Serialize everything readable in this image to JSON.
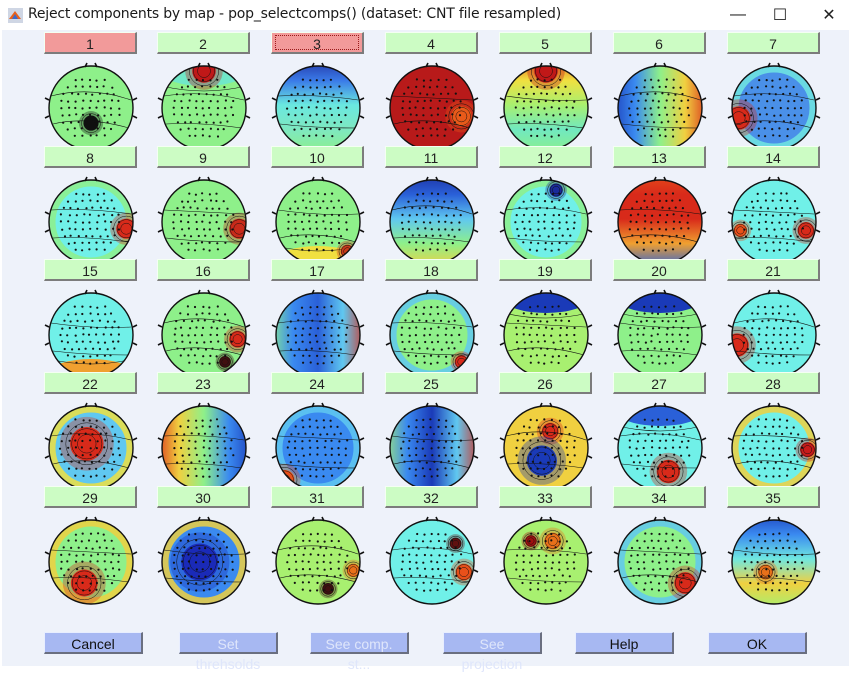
{
  "window": {
    "title": "Reject components by map - pop_selectcomps() (dataset: CNT file resampled)",
    "app_icon": "matlab-icon",
    "controls": {
      "minimize": "—",
      "maximize": "☐",
      "close": "✕"
    }
  },
  "colors": {
    "background": "#eef2fa",
    "accept_button": "#ccfcc4",
    "reject_button": "#f29a9a",
    "action_button": "#a7b8f2",
    "disabled_text": "#dfe6fb"
  },
  "components": [
    {
      "label": "1",
      "status": "reject",
      "map": "bg:#8ef08a;spot:0.5,0.68,0.09,#101010"
    },
    {
      "label": "2",
      "status": "accept",
      "map": "bg:#8ef08a;topband:#70e8c8;spot:0.5,0.06,0.14,#c01818"
    },
    {
      "label": "3",
      "status": "reject",
      "focused": true,
      "map": "grad:#1e2a9a,#3a7ae8,#6ae8e0,#7ee8c0,#8ef08a"
    },
    {
      "label": "4",
      "status": "accept",
      "map": "bg:#b81a1a;spot:0.85,0.6,0.12,#e85a1a"
    },
    {
      "label": "5",
      "status": "accept",
      "map": "grad:#e8501a,#f0e040,#a8f070,#70e8c0,#8ef08a;spot:0.5,0.06,0.14,#c01818"
    },
    {
      "label": "6",
      "status": "accept",
      "map": "lr:#1a3ab8,#3a8af0,#8ef08a,#f0d040,#d82a1a"
    },
    {
      "label": "7",
      "status": "accept",
      "map": "bg:#4a90e8;spot:0.08,0.62,0.14,#d82a1a;edge:#70e8e0"
    },
    {
      "label": "8",
      "status": "accept",
      "map": "bg:#70f0e8;spot:0.92,0.58,0.12,#d82a1a;edge:#8ef08a"
    },
    {
      "label": "9",
      "status": "accept",
      "map": "bg:#8ef08a;spot:0.92,0.58,0.12,#c82a1a"
    },
    {
      "label": "10",
      "status": "accept",
      "map": "bg:#8ef08a;botband:#f0e040;spot:0.85,0.85,0.08,#c83a1a"
    },
    {
      "label": "11",
      "status": "accept",
      "map": "grad:#1a2a9a,#2a60d8,#60c8f0,#8ef08a,#f0d040"
    },
    {
      "label": "12",
      "status": "accept",
      "map": "bg:#70f0e8;spot:0.62,0.12,0.08,#1a2a9a;edge:#8ef08a"
    },
    {
      "label": "13",
      "status": "accept",
      "map": "grad:#e8501a,#d82a1a,#d82a1a,#f0a030,#2a60d8"
    },
    {
      "label": "14",
      "status": "accept",
      "map": "bg:#70f0e8;spot:0.88,0.6,0.1,#d82a1a;spot2:0.1,0.6,0.08,#e8501a"
    },
    {
      "label": "15",
      "status": "accept",
      "map": "bg:#70f0e8;botband:#f0a030"
    },
    {
      "label": "16",
      "status": "accept",
      "map": "bg:#8ef08a;spot:0.9,0.55,0.1,#d82a1a;spot2:0.75,0.82,0.07,#401010"
    },
    {
      "label": "17",
      "status": "accept",
      "map": "lr:#8ef08a,#3a8af0,#2a60d8,#60c8f0,#d82a1a"
    },
    {
      "label": "18",
      "status": "accept",
      "map": "bg:#8ef08a;spot:0.85,0.82,0.08,#d82a1a;edge:#60c8f0"
    },
    {
      "label": "19",
      "status": "accept",
      "map": "bg:#a8f070;topband:#1a3ab8"
    },
    {
      "label": "20",
      "status": "accept",
      "map": "bg:#8ef08a;topband:#1a3ab8"
    },
    {
      "label": "21",
      "status": "accept",
      "map": "bg:#70f0e8;spot:0.06,0.62,0.14,#d82a1a"
    },
    {
      "label": "22",
      "status": "accept",
      "map": "bg:#60c8f0;spot:0.45,0.45,0.2,#d82a1a;edge:#f0e040"
    },
    {
      "label": "23",
      "status": "accept",
      "map": "lr:#d82a1a,#f0d040,#8ef08a,#3a8af0,#1a3ab8"
    },
    {
      "label": "24",
      "status": "accept",
      "map": "bg:#3a8af0;spot:0.1,0.88,0.12,#e8501a;edge:#60c8f0"
    },
    {
      "label": "25",
      "status": "accept",
      "map": "lr:#a8f070,#3a8af0,#1a3ab8,#60c8f0,#d82a1a"
    },
    {
      "label": "26",
      "status": "accept",
      "map": "bg:#f0d040;spot:0.55,0.3,0.1,#d82a1a;spot2:0.45,0.65,0.18,#1a3ab8"
    },
    {
      "label": "27",
      "status": "accept",
      "map": "bg:#70f0e8;spot:0.6,0.78,0.14,#d82a1a;topband:#2a60d8"
    },
    {
      "label": "28",
      "status": "accept",
      "map": "bg:#70f0e8;spot:0.9,0.52,0.09,#c81a1a;edge:#f0d040"
    },
    {
      "label": "29",
      "status": "accept",
      "map": "bg:#8ef08a;spot:0.42,0.75,0.16,#d82a1a;edge:#f0d040"
    },
    {
      "label": "30",
      "status": "accept",
      "map": "bg:#3a8af0;spot:0.45,0.5,0.22,#1a2ab8;edge:#f0d040"
    },
    {
      "label": "31",
      "status": "accept",
      "map": "bg:#a8f070;spot:0.62,0.82,0.07,#401010;spot2:0.92,0.6,0.08,#e8701a"
    },
    {
      "label": "32",
      "status": "accept",
      "map": "bg:#70f0e8;spot:0.88,0.62,0.1,#e8501a;spot2:0.78,0.28,0.07,#601010"
    },
    {
      "label": "33",
      "status": "accept",
      "map": "bg:#a8f070;spot:0.58,0.25,0.1,#e8701a;spot2:0.32,0.25,0.07,#a01010"
    },
    {
      "label": "34",
      "status": "accept",
      "map": "bg:#8ef08a;spot:0.8,0.75,0.13,#d82a1a;edge:#60c8f0"
    },
    {
      "label": "35",
      "status": "accept",
      "map": "grad:#1a3ab8,#3a8af0,#70e8e0,#f0d040,#a8f070;spot:0.4,0.62,0.09,#e8701a"
    }
  ],
  "actions": [
    {
      "label": "Cancel",
      "enabled": true
    },
    {
      "label": "Set threhsolds",
      "enabled": false
    },
    {
      "label": "See comp. st...",
      "enabled": false
    },
    {
      "label": "See projection",
      "enabled": false
    },
    {
      "label": "Help",
      "enabled": true
    },
    {
      "label": "OK",
      "enabled": true
    }
  ]
}
